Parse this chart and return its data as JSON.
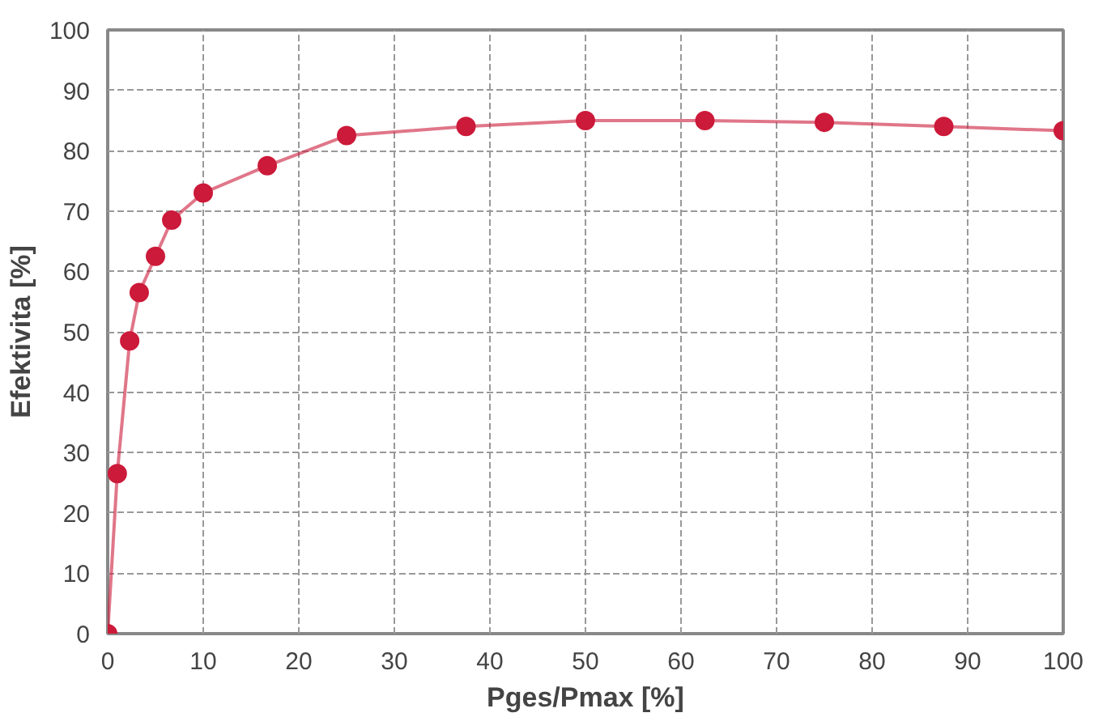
{
  "chart_data": {
    "type": "line",
    "xlabel": "Pges/Pmax [%]",
    "ylabel": "Efektivita [%]",
    "x": [
      0,
      1,
      2.3,
      3.3,
      5,
      6.7,
      10,
      16.7,
      25,
      37.5,
      50,
      62.5,
      75,
      87.5,
      100
    ],
    "series": [
      {
        "color": "#cc1a3a",
        "values": [
          0,
          26.5,
          48.5,
          56.5,
          62.5,
          68.5,
          73,
          77.5,
          82.5,
          84,
          85,
          85,
          84.7,
          84,
          83.3
        ]
      }
    ],
    "xlim": [
      0,
      100
    ],
    "xticks": [
      0,
      10,
      20,
      30,
      40,
      50,
      60,
      70,
      80,
      90,
      100
    ],
    "ylim": [
      0,
      100
    ],
    "yticks": [
      0,
      10,
      20,
      30,
      40,
      50,
      60,
      70,
      80,
      90,
      100
    ],
    "grid": true,
    "marker": "circle",
    "line_style": "solid"
  }
}
